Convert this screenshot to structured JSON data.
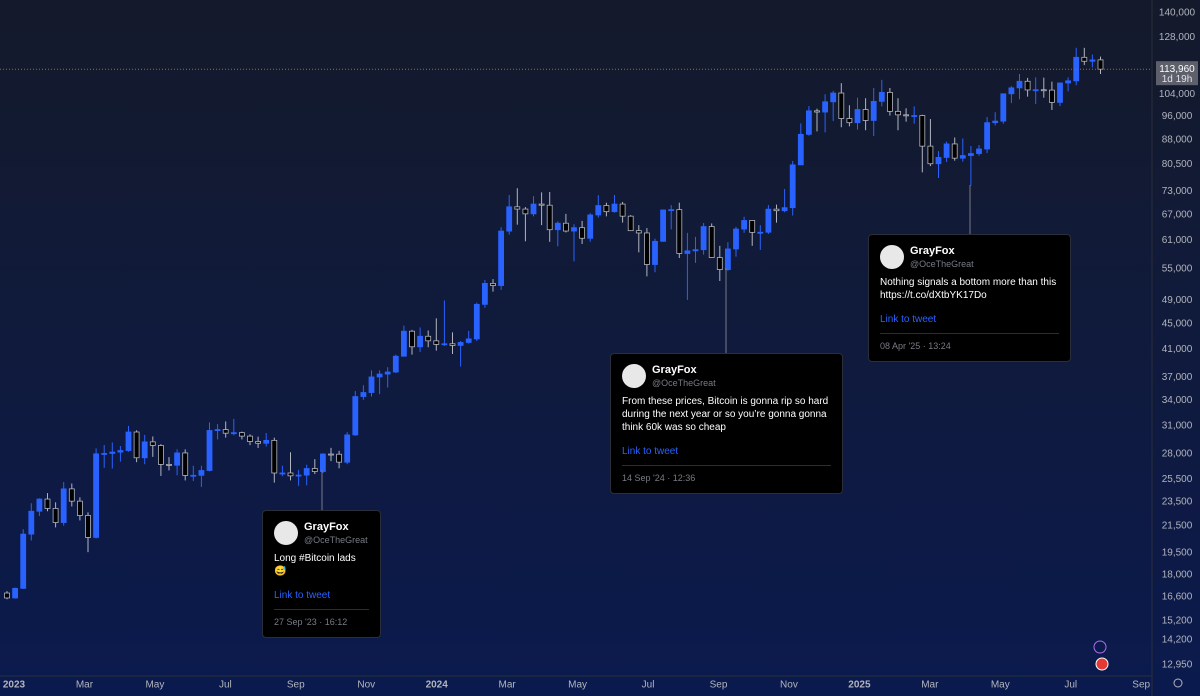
{
  "chart_data": {
    "type": "candlestick",
    "log_scale": true,
    "grid": false,
    "up_color": "#2962ff",
    "down_color": "#000000",
    "down_border": "#b2b5be",
    "ylim": [
      12440,
      146700
    ],
    "yticks": [
      {
        "value": 12950,
        "label": "12,950"
      },
      {
        "value": 14200,
        "label": "14,200"
      },
      {
        "value": 15200,
        "label": "15,200"
      },
      {
        "value": 16600,
        "label": "16,600"
      },
      {
        "value": 18000,
        "label": "18,000"
      },
      {
        "value": 19500,
        "label": "19,500"
      },
      {
        "value": 21500,
        "label": "21,500"
      },
      {
        "value": 23500,
        "label": "23,500"
      },
      {
        "value": 25500,
        "label": "25,500"
      },
      {
        "value": 28000,
        "label": "28,000"
      },
      {
        "value": 31000,
        "label": "31,000"
      },
      {
        "value": 34000,
        "label": "34,000"
      },
      {
        "value": 37000,
        "label": "37,000"
      },
      {
        "value": 41000,
        "label": "41,000"
      },
      {
        "value": 45000,
        "label": "45,000"
      },
      {
        "value": 49000,
        "label": "49,000"
      },
      {
        "value": 55000,
        "label": "55,000"
      },
      {
        "value": 61000,
        "label": "61,000"
      },
      {
        "value": 67000,
        "label": "67,000"
      },
      {
        "value": 73000,
        "label": "73,000"
      },
      {
        "value": 80500,
        "label": "80,500"
      },
      {
        "value": 88000,
        "label": "88,000"
      },
      {
        "value": 96000,
        "label": "96,000"
      },
      {
        "value": 104000,
        "label": "104,000"
      },
      {
        "value": 128000,
        "label": "128,000"
      },
      {
        "value": 140000,
        "label": "140,000"
      }
    ],
    "xticks": [
      "2023",
      "Mar",
      "May",
      "Jul",
      "Sep",
      "Nov",
      "2024",
      "Mar",
      "May",
      "Jul",
      "Sep",
      "Nov",
      "2025",
      "Mar",
      "May",
      "Jul",
      "Sep"
    ],
    "last_price": {
      "value": 113960,
      "label": "113,960"
    },
    "countdown": "1d 19h",
    "ohlc": [
      [
        16840,
        16960,
        16460,
        16540
      ],
      [
        16540,
        17180,
        16500,
        17130
      ],
      [
        17130,
        21260,
        17100,
        20880
      ],
      [
        20880,
        23370,
        20400,
        22700
      ],
      [
        22700,
        23800,
        22300,
        23730
      ],
      [
        23730,
        24250,
        22700,
        22930
      ],
      [
        22930,
        23450,
        21400,
        21780
      ],
      [
        21780,
        25250,
        21530,
        24630
      ],
      [
        24630,
        25120,
        23100,
        23550
      ],
      [
        23550,
        23880,
        21950,
        22350
      ],
      [
        22350,
        22600,
        19550,
        20630
      ],
      [
        20630,
        28550,
        20550,
        27990
      ],
      [
        27990,
        28900,
        26600,
        28030
      ],
      [
        28030,
        29180,
        26530,
        28170
      ],
      [
        28170,
        28800,
        27200,
        28330
      ],
      [
        28330,
        31000,
        28200,
        30310
      ],
      [
        30310,
        30500,
        27150,
        27590
      ],
      [
        27590,
        30000,
        26950,
        29240
      ],
      [
        29240,
        29820,
        27680,
        28860
      ],
      [
        28860,
        29000,
        25820,
        26930
      ],
      [
        26930,
        27650,
        26350,
        26850
      ],
      [
        26850,
        28450,
        25880,
        28080
      ],
      [
        28080,
        28450,
        25400,
        25870
      ],
      [
        25870,
        26800,
        25350,
        25880
      ],
      [
        25880,
        26800,
        24800,
        26340
      ],
      [
        26340,
        31400,
        26250,
        30480
      ],
      [
        30480,
        31200,
        29500,
        30580
      ],
      [
        30580,
        31500,
        29700,
        30180
      ],
      [
        30180,
        31800,
        29950,
        30240
      ],
      [
        30240,
        30350,
        29500,
        29860
      ],
      [
        29860,
        30050,
        28900,
        29280
      ],
      [
        29280,
        29800,
        28600,
        29090
      ],
      [
        29090,
        30200,
        28750,
        29400
      ],
      [
        29400,
        29690,
        25200,
        26100
      ],
      [
        26100,
        26800,
        25800,
        26100
      ],
      [
        26100,
        28150,
        25400,
        25830
      ],
      [
        25830,
        26400,
        24900,
        25900
      ],
      [
        25900,
        26900,
        24950,
        26530
      ],
      [
        26530,
        27450,
        26000,
        26240
      ],
      [
        26240,
        28050,
        26100,
        27970
      ],
      [
        27970,
        28600,
        27250,
        27950
      ],
      [
        27950,
        28300,
        26550,
        27150
      ],
      [
        27150,
        30300,
        26950,
        29990
      ],
      [
        29990,
        35200,
        29900,
        34500
      ],
      [
        34500,
        35950,
        34100,
        35010
      ],
      [
        35010,
        37950,
        34500,
        37060
      ],
      [
        37060,
        37950,
        34800,
        37450
      ],
      [
        37450,
        38400,
        35650,
        37730
      ],
      [
        37730,
        40200,
        37600,
        39970
      ],
      [
        39970,
        44700,
        39950,
        43790
      ],
      [
        43790,
        44000,
        40200,
        41370
      ],
      [
        41370,
        44400,
        40600,
        42990
      ],
      [
        42990,
        43900,
        41300,
        42280
      ],
      [
        42280,
        45900,
        40800,
        41730
      ],
      [
        41730,
        49000,
        41500,
        41830
      ],
      [
        41830,
        43600,
        40300,
        41580
      ],
      [
        41580,
        42250,
        38500,
        42030
      ],
      [
        42030,
        43850,
        41850,
        42580
      ],
      [
        42580,
        48600,
        42250,
        48300
      ],
      [
        48300,
        52800,
        47700,
        52140
      ],
      [
        52140,
        52950,
        50600,
        51730
      ],
      [
        51730,
        64000,
        50900,
        63110
      ],
      [
        63110,
        72000,
        62300,
        68960
      ],
      [
        68960,
        73800,
        64600,
        68390
      ],
      [
        68390,
        68900,
        60800,
        67210
      ],
      [
        67210,
        71700,
        66600,
        69650
      ],
      [
        69650,
        72700,
        64500,
        69360
      ],
      [
        69360,
        72800,
        60700,
        63430
      ],
      [
        63430,
        65400,
        59700,
        64950
      ],
      [
        64950,
        67200,
        62800,
        63120
      ],
      [
        63120,
        64700,
        56500,
        63900
      ],
      [
        63900,
        65500,
        60200,
        61480
      ],
      [
        61480,
        67400,
        60700,
        66940
      ],
      [
        66940,
        71950,
        66300,
        69280
      ],
      [
        69280,
        70000,
        66600,
        67750
      ],
      [
        67750,
        72000,
        67500,
        69650
      ],
      [
        69650,
        70200,
        65100,
        66640
      ],
      [
        66640,
        66900,
        63400,
        63210
      ],
      [
        63210,
        64500,
        58400,
        62680
      ],
      [
        62680,
        63800,
        53500,
        55860
      ],
      [
        55860,
        61400,
        54300,
        60800
      ],
      [
        60800,
        68300,
        60700,
        68160
      ],
      [
        68160,
        69400,
        63500,
        68250
      ],
      [
        68250,
        70000,
        57200,
        58160
      ],
      [
        58160,
        62700,
        49100,
        58720
      ],
      [
        58720,
        61800,
        56200,
        58970
      ],
      [
        58970,
        65000,
        57900,
        64170
      ],
      [
        64170,
        64900,
        57200,
        57300
      ],
      [
        57300,
        59800,
        52600,
        54840
      ],
      [
        54840,
        60600,
        54600,
        59130
      ],
      [
        59130,
        64100,
        57500,
        63580
      ],
      [
        63580,
        66500,
        62700,
        65600
      ],
      [
        65600,
        65600,
        59800,
        62820
      ],
      [
        62820,
        64500,
        58900,
        62850
      ],
      [
        62850,
        69400,
        62450,
        68370
      ],
      [
        68370,
        69500,
        65100,
        67990
      ],
      [
        67990,
        73600,
        67600,
        68740
      ],
      [
        68740,
        81500,
        66800,
        80370
      ],
      [
        80370,
        93500,
        80300,
        89840
      ],
      [
        89840,
        99600,
        89400,
        97900
      ],
      [
        97900,
        98700,
        90800,
        97460
      ],
      [
        97460,
        104000,
        90500,
        101170
      ],
      [
        101170,
        105300,
        94300,
        104460
      ],
      [
        104460,
        108300,
        92200,
        95190
      ],
      [
        95190,
        99900,
        92500,
        93750
      ],
      [
        93750,
        102700,
        91400,
        98360
      ],
      [
        98360,
        102500,
        91200,
        94510
      ],
      [
        94510,
        106400,
        89300,
        101330
      ],
      [
        101330,
        109600,
        99500,
        104710
      ],
      [
        104710,
        106400,
        96200,
        97700
      ],
      [
        97700,
        102500,
        91200,
        96470
      ],
      [
        96470,
        98800,
        94100,
        96190
      ],
      [
        96190,
        99500,
        93400,
        96230
      ],
      [
        96230,
        96500,
        78200,
        86050
      ],
      [
        86050,
        95000,
        80000,
        80700
      ],
      [
        80700,
        84500,
        76600,
        82580
      ],
      [
        82580,
        87500,
        81200,
        86750
      ],
      [
        86750,
        88800,
        81600,
        82360
      ],
      [
        82360,
        88500,
        81300,
        83150
      ],
      [
        83150,
        86100,
        74500,
        83760
      ],
      [
        83760,
        86400,
        83100,
        85170
      ],
      [
        85170,
        95700,
        83900,
        93750
      ],
      [
        93750,
        97400,
        92800,
        94280
      ],
      [
        94280,
        104300,
        93400,
        104170
      ],
      [
        104170,
        107100,
        100700,
        106450
      ],
      [
        106450,
        112000,
        102100,
        109040
      ],
      [
        109040,
        110400,
        103100,
        105640
      ],
      [
        105640,
        110600,
        100400,
        105730
      ],
      [
        105730,
        110500,
        102700,
        105580
      ],
      [
        105580,
        108900,
        98200,
        100960
      ],
      [
        100960,
        108500,
        99600,
        108370
      ],
      [
        108370,
        110600,
        105100,
        109220
      ],
      [
        109220,
        123200,
        107500,
        119000
      ],
      [
        119000,
        123200,
        115700,
        117300
      ],
      [
        117300,
        120200,
        114700,
        117900
      ],
      [
        117900,
        119300,
        112000,
        113960
      ]
    ],
    "annotations": [
      {
        "author": "GrayFox",
        "handle": "@OceTheGreat",
        "text": "Long #Bitcoin lads 😅",
        "link": "Link to tweet",
        "date": "27 Sep '23 · 16:12"
      },
      {
        "author": "GrayFox",
        "handle": "@OceTheGreat",
        "text": "From these prices, Bitcoin is gonna rip so hard during the next year or so you’re gonna gonna think 60k was so cheap",
        "link": "Link to tweet",
        "date": "14 Sep '24 · 12:36"
      },
      {
        "author": "GrayFox",
        "handle": "@OceTheGreat",
        "text": "Nothing signals a bottom more than this https://t.co/dXtbYK17Do",
        "link": "Link to tweet",
        "date": "08 Apr '25 · 13:24"
      }
    ]
  }
}
